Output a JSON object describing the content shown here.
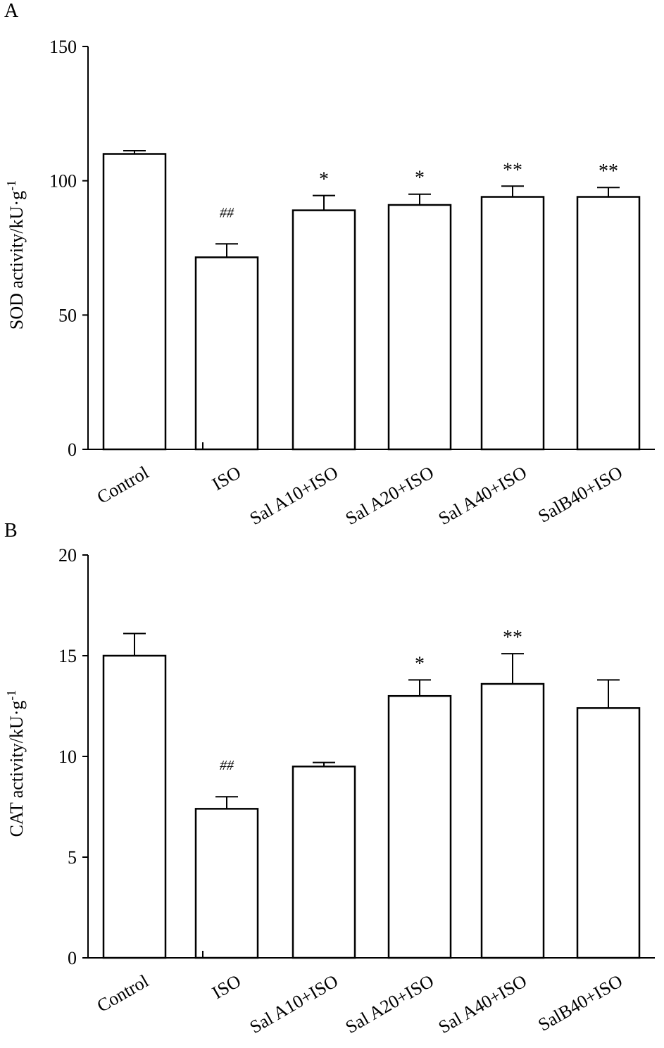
{
  "chart_data": [
    {
      "type": "bar",
      "panel": "A",
      "ylabel": "SOD activity/kU·g",
      "ylabel_superscript": "-1",
      "xlabel": "",
      "ylim": [
        0,
        150
      ],
      "yticks": [
        0,
        50,
        100,
        150
      ],
      "categories": [
        "Control",
        "ISO",
        "Sal A10+ISO",
        "Sal A20+ISO",
        "Sal A40+ISO",
        "SalB40+ISO"
      ],
      "values": [
        110,
        71.5,
        89,
        91,
        94,
        94
      ],
      "errors": [
        1.2,
        5,
        5.5,
        4,
        4,
        3.5
      ],
      "significance": [
        "",
        "##",
        "*",
        "*",
        "**",
        "**"
      ],
      "grid": false
    },
    {
      "type": "bar",
      "panel": "B",
      "ylabel": "CAT activity/kU·g",
      "ylabel_superscript": "-1",
      "xlabel": "",
      "ylim": [
        0,
        20
      ],
      "yticks": [
        0,
        5,
        10,
        15,
        20
      ],
      "categories": [
        "Control",
        "ISO",
        "Sal A10+ISO",
        "Sal A20+ISO",
        "Sal A40+ISO",
        "SalB40+ISO"
      ],
      "values": [
        15,
        7.4,
        9.5,
        13,
        13.6,
        12.4
      ],
      "errors": [
        1.1,
        0.6,
        0.2,
        0.8,
        1.5,
        1.4
      ],
      "significance": [
        "",
        "##",
        "",
        "*",
        "**",
        ""
      ],
      "grid": false
    }
  ]
}
